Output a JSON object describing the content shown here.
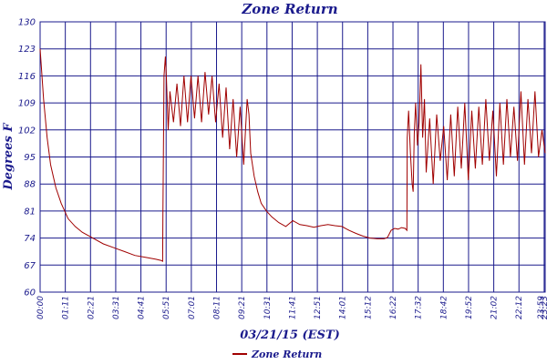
{
  "chart_data": {
    "type": "line",
    "title": "Zone Return",
    "xlabel": "03/21/15 (EST)",
    "ylabel": "Degrees F",
    "ylim": [
      60,
      130
    ],
    "yticks": [
      "60",
      "67",
      "74",
      "81",
      "88",
      "95",
      "102",
      "109",
      "116",
      "123",
      "130"
    ],
    "xticks": [
      "00:00",
      "01:11",
      "02:21",
      "03:31",
      "04:41",
      "05:51",
      "07:01",
      "08:11",
      "09:21",
      "10:31",
      "11:41",
      "12:51",
      "14:01",
      "15:12",
      "16:22",
      "17:32",
      "18:42",
      "19:52",
      "21:02",
      "22:12",
      "23:23",
      "23:59"
    ],
    "grid": true,
    "legend_position": "bottom",
    "series": [
      {
        "name": "Zone Return",
        "color": "#a00000",
        "x_minutes": [
          0,
          10,
          20,
          30,
          45,
          60,
          80,
          100,
          120,
          150,
          180,
          210,
          240,
          270,
          300,
          330,
          345,
          349,
          350,
          353,
          357,
          360,
          365,
          370,
          380,
          390,
          400,
          410,
          420,
          430,
          440,
          450,
          460,
          470,
          480,
          490,
          500,
          510,
          520,
          530,
          540,
          550,
          560,
          570,
          580,
          590,
          595,
          600,
          610,
          620,
          630,
          645,
          660,
          680,
          700,
          720,
          740,
          760,
          780,
          800,
          820,
          840,
          860,
          880,
          900,
          920,
          940,
          960,
          980,
          990,
          1000,
          1010,
          1020,
          1030,
          1040,
          1045,
          1046,
          1050,
          1055,
          1060,
          1063,
          1066,
          1070,
          1075,
          1080,
          1085,
          1090,
          1095,
          1100,
          1110,
          1120,
          1130,
          1140,
          1150,
          1160,
          1170,
          1180,
          1190,
          1200,
          1210,
          1220,
          1230,
          1240,
          1250,
          1260,
          1270,
          1280,
          1290,
          1300,
          1310,
          1320,
          1330,
          1340,
          1350,
          1360,
          1370,
          1380,
          1390,
          1400,
          1410,
          1420,
          1430,
          1439
        ],
        "values": [
          123,
          110,
          100,
          93,
          87,
          83,
          79,
          77,
          75.5,
          74,
          72.5,
          71.5,
          70.5,
          69.5,
          69,
          68.5,
          68.2,
          68,
          80,
          116,
          121,
          115,
          102,
          112,
          104,
          114,
          103,
          116,
          104,
          116,
          105,
          116,
          104,
          117,
          106,
          116,
          104,
          114,
          100,
          113,
          97,
          110,
          95,
          108,
          93,
          110,
          106,
          96,
          90,
          86,
          83,
          81,
          79.5,
          78,
          77,
          78.5,
          77.5,
          77.2,
          76.8,
          77.2,
          77.5,
          77.2,
          77,
          76,
          75.2,
          74.5,
          74,
          73.8,
          73.8,
          74.2,
          76,
          76.5,
          76.3,
          76.7,
          76.5,
          76,
          100,
          107,
          96,
          88,
          86,
          101,
          109,
          98,
          104,
          119,
          100,
          110,
          91,
          105,
          88,
          106,
          94,
          103,
          89,
          106,
          90,
          108,
          92,
          109,
          89,
          107,
          92,
          108,
          93,
          110,
          94,
          107,
          90,
          109,
          93,
          110,
          95,
          108,
          94,
          112,
          93,
          110,
          96,
          112,
          95,
          102,
          96
        ]
      }
    ]
  }
}
